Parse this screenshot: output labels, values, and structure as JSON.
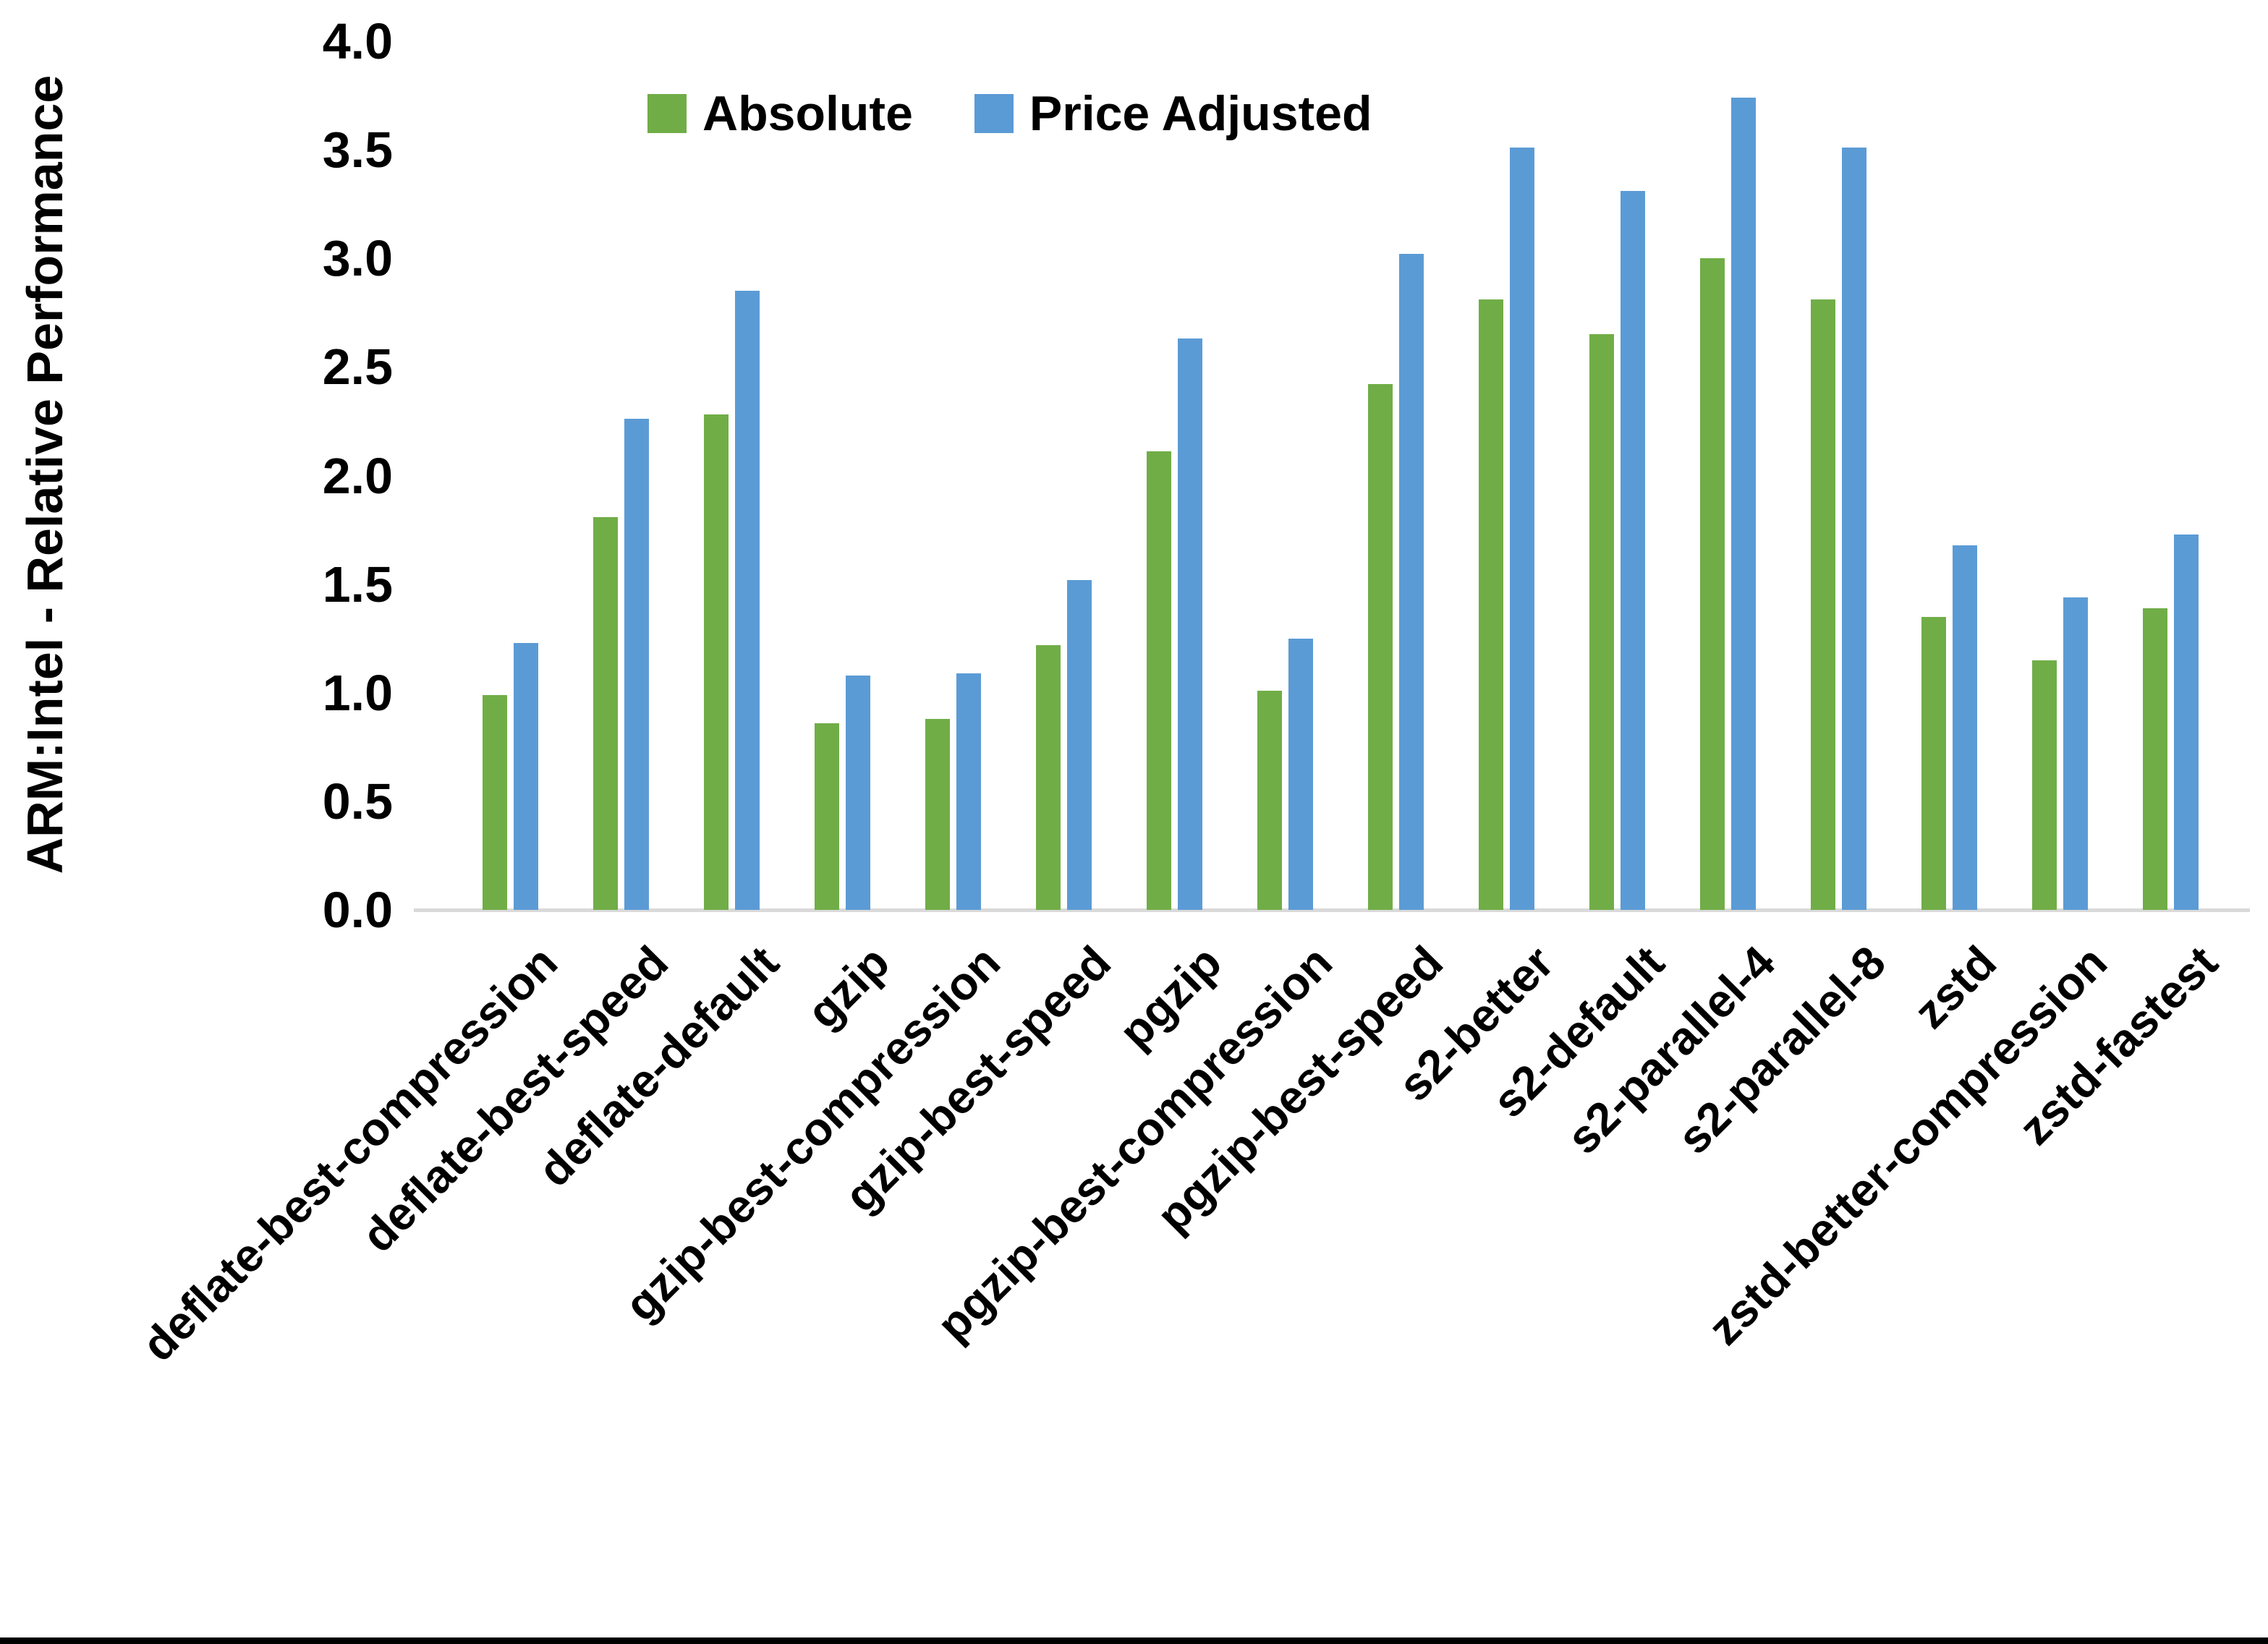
{
  "chart_data": {
    "type": "bar",
    "title": "",
    "ylabel": "ARM:Intel - Relative Performance",
    "xlabel": "",
    "ylim": [
      0.0,
      4.0
    ],
    "ytick_step": 0.5,
    "ytick_labels": [
      "0.0",
      "0.5",
      "1.0",
      "1.5",
      "2.0",
      "2.5",
      "3.0",
      "3.5",
      "4.0"
    ],
    "grid": false,
    "legend_position": "top-center",
    "axis_line_color": "#D9D9D9",
    "text_color": "#000000",
    "categories": [
      "deflate-best-compression",
      "deflate-best-speed",
      "deflate-default",
      "gzip",
      "gzip-best-compression",
      "gzip-best-speed",
      "pgzip",
      "pgzip-best-compression",
      "pgzip-best-speed",
      "s2-better",
      "s2-default",
      "s2-parallel-4",
      "s2-parallel-8",
      "zstd",
      "zstd-better-compression",
      "zstd-fastest"
    ],
    "series": [
      {
        "name": "Absolute",
        "color": "#70AD47",
        "values": [
          0.99,
          1.81,
          2.28,
          0.86,
          0.88,
          1.22,
          2.11,
          1.01,
          2.42,
          2.81,
          2.65,
          3.0,
          2.81,
          1.35,
          1.15,
          1.39
        ]
      },
      {
        "name": "Price Adjusted",
        "color": "#5B9BD5",
        "values": [
          1.23,
          2.26,
          2.85,
          1.08,
          1.09,
          1.52,
          2.63,
          1.25,
          3.02,
          3.51,
          3.31,
          3.74,
          3.51,
          1.68,
          1.44,
          1.73
        ]
      }
    ]
  }
}
